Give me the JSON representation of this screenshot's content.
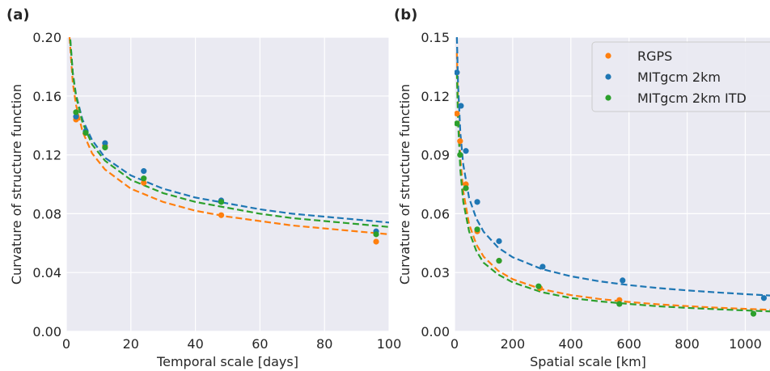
{
  "chart_data": [
    {
      "type": "scatter",
      "title": "(a)",
      "xlabel": "Temporal scale [days]",
      "ylabel": "Curvature of structure function",
      "xlim": [
        0,
        100
      ],
      "ylim": [
        0,
        0.2
      ],
      "xticks": [
        0,
        20,
        40,
        60,
        80,
        100
      ],
      "yticks": [
        {
          "value": 0,
          "label": "0.00"
        },
        {
          "value": 0.04,
          "label": "0.04"
        },
        {
          "value": 0.08,
          "label": "0.08"
        },
        {
          "value": 0.12,
          "label": "0.12"
        },
        {
          "value": 0.16,
          "label": "0.16"
        },
        {
          "value": 0.2,
          "label": "0.20"
        }
      ],
      "grid": true,
      "legend": false,
      "series": [
        {
          "name": "RGPS",
          "color": "#ff7f0e",
          "x": [
            3,
            6,
            12,
            24,
            48,
            96
          ],
          "values": [
            0.144,
            0.135,
            0.126,
            0.101,
            0.079,
            0.061
          ],
          "fit": {
            "x": [
              1,
              2,
              3,
              5,
              8,
              12,
              20,
              30,
              40,
              50,
              60,
              70,
              80,
              90,
              100
            ],
            "values": [
              0.2,
              0.169,
              0.154,
              0.136,
              0.121,
              0.11,
              0.097,
              0.088,
              0.082,
              0.078,
              0.075,
              0.072,
              0.07,
              0.068,
              0.066
            ]
          }
        },
        {
          "name": "MITgcm 2km",
          "color": "#1f77b4",
          "x": [
            3,
            6,
            12,
            24,
            48,
            96
          ],
          "values": [
            0.146,
            0.136,
            0.128,
            0.109,
            0.089,
            0.068
          ],
          "fit": {
            "x": [
              1,
              2,
              3,
              5,
              8,
              12,
              20,
              30,
              40,
              50,
              60,
              70,
              80,
              90,
              100
            ],
            "values": [
              0.205,
              0.176,
              0.161,
              0.144,
              0.13,
              0.118,
              0.106,
              0.097,
              0.091,
              0.087,
              0.083,
              0.08,
              0.078,
              0.076,
              0.074
            ]
          }
        },
        {
          "name": "MITgcm 2km ITD",
          "color": "#2ca02c",
          "x": [
            3,
            6,
            12,
            24,
            48,
            96
          ],
          "values": [
            0.149,
            0.135,
            0.125,
            0.104,
            0.088,
            0.066
          ],
          "fit": {
            "x": [
              1,
              2,
              3,
              5,
              8,
              12,
              20,
              30,
              40,
              50,
              60,
              70,
              80,
              90,
              100
            ],
            "values": [
              0.205,
              0.175,
              0.16,
              0.142,
              0.127,
              0.116,
              0.103,
              0.094,
              0.088,
              0.084,
              0.08,
              0.077,
              0.075,
              0.073,
              0.071
            ]
          }
        }
      ]
    },
    {
      "type": "scatter",
      "title": "(b)",
      "xlabel": "Spatial scale [km]",
      "ylabel": "Curvature of structure function",
      "xlim": [
        0,
        1085
      ],
      "ylim": [
        0,
        0.15
      ],
      "xticks": [
        0,
        200,
        400,
        600,
        800,
        1000
      ],
      "yticks": [
        {
          "value": 0,
          "label": "0.00"
        },
        {
          "value": 0.03,
          "label": "0.03"
        },
        {
          "value": 0.06,
          "label": "0.06"
        },
        {
          "value": 0.09,
          "label": "0.09"
        },
        {
          "value": 0.12,
          "label": "0.12"
        },
        {
          "value": 0.15,
          "label": "0.15"
        }
      ],
      "grid": true,
      "legend": "upper right",
      "series": [
        {
          "name": "RGPS",
          "color": "#ff7f0e",
          "x": [
            8,
            19,
            39,
            78,
            153,
            294,
            567
          ],
          "values": [
            0.111,
            0.097,
            0.075,
            0.051,
            0.036,
            0.022,
            0.016
          ],
          "fit": {
            "x": [
              8,
              12,
              20,
              30,
              50,
              75,
              100,
              150,
              200,
              300,
              400,
              500,
              600,
              700,
              800,
              900,
              1000,
              1085
            ],
            "values": [
              0.142,
              0.115,
              0.088,
              0.0714,
              0.0547,
              0.0443,
              0.0381,
              0.0309,
              0.0266,
              0.0215,
              0.0185,
              0.0165,
              0.015,
              0.0138,
              0.0129,
              0.0121,
              0.0115,
              0.011
            ]
          }
        },
        {
          "name": "MITgcm 2km",
          "color": "#1f77b4",
          "x": [
            8,
            22,
            39,
            78,
            153,
            303,
            578,
            1064
          ],
          "values": [
            0.132,
            0.115,
            0.092,
            0.066,
            0.046,
            0.033,
            0.026,
            0.017
          ],
          "fit": {
            "x": [
              8,
              12,
              20,
              30,
              50,
              75,
              100,
              150,
              200,
              300,
              400,
              500,
              600,
              700,
              800,
              900,
              1000,
              1085
            ],
            "values": [
              0.15,
              0.126,
              0.101,
              0.085,
              0.068,
              0.0575,
              0.0508,
              0.0427,
              0.0378,
              0.0318,
              0.0281,
              0.0255,
              0.0236,
              0.0221,
              0.0209,
              0.0199,
              0.019,
              0.0183
            ]
          }
        },
        {
          "name": "MITgcm 2km ITD",
          "color": "#2ca02c",
          "x": [
            8,
            19,
            39,
            78,
            153,
            289,
            567,
            1028
          ],
          "values": [
            0.106,
            0.09,
            0.073,
            0.052,
            0.036,
            0.023,
            0.014,
            0.009
          ],
          "fit": {
            "x": [
              8,
              12,
              20,
              30,
              50,
              75,
              100,
              150,
              200,
              300,
              400,
              500,
              600,
              700,
              800,
              900,
              1000,
              1085
            ],
            "values": [
              0.132,
              0.107,
              0.082,
              0.066,
              0.051,
              0.041,
              0.035,
              0.029,
              0.025,
              0.02,
              0.017,
              0.0153,
              0.014,
              0.0128,
              0.012,
              0.0113,
              0.0107,
              0.0102
            ]
          }
        }
      ]
    }
  ]
}
